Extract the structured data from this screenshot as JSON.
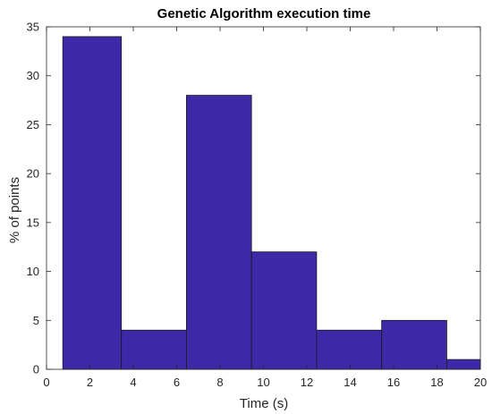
{
  "chart_data": {
    "type": "bar",
    "title": "Genetic Algorithm execution time",
    "xlabel": "Time (s)",
    "ylabel": "% of points",
    "xlim": [
      0,
      20
    ],
    "ylim": [
      0,
      35
    ],
    "xticks": [
      0,
      2,
      4,
      6,
      8,
      10,
      12,
      14,
      16,
      18,
      20
    ],
    "yticks": [
      0,
      5,
      10,
      15,
      20,
      25,
      30,
      35
    ],
    "grid": false,
    "bars": [
      {
        "x0": 0.75,
        "x1": 3.45,
        "value": 34
      },
      {
        "x0": 3.45,
        "x1": 6.45,
        "value": 4
      },
      {
        "x0": 6.45,
        "x1": 9.45,
        "value": 28
      },
      {
        "x0": 9.45,
        "x1": 12.45,
        "value": 12
      },
      {
        "x0": 12.45,
        "x1": 15.45,
        "value": 4
      },
      {
        "x0": 15.45,
        "x1": 18.45,
        "value": 5
      },
      {
        "x0": 18.45,
        "x1": 20.0,
        "value": 1
      }
    ],
    "bar_color": "#3d28a8"
  }
}
